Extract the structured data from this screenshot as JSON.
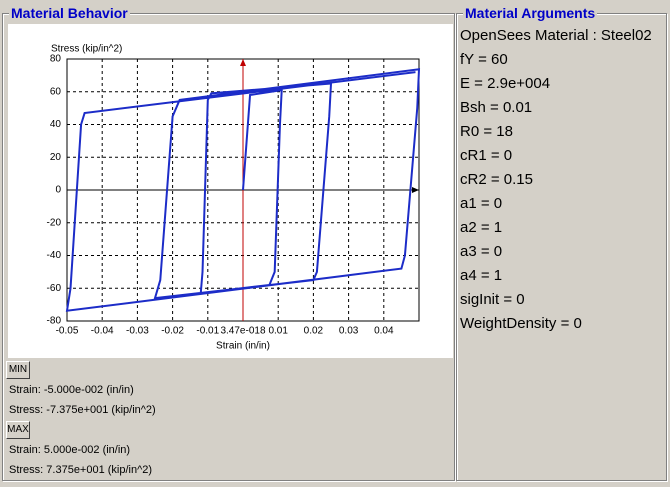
{
  "left_panel": {
    "title": "Material Behavior",
    "min_button": "MIN",
    "min_strain": "Strain: -5.000e-002 (in/in)",
    "min_stress": "Stress: -7.375e+001 (kip/in^2)",
    "max_button": "MAX",
    "max_strain": "Strain: 5.000e-002 (in/in)",
    "max_stress": "Stress: 7.375e+001 (kip/in^2)"
  },
  "chart_data": {
    "type": "line",
    "y_label": "Stress (kip/in^2)",
    "x_label": "Strain (in/in)",
    "x": [
      0,
      0.002,
      0.011,
      0.0105,
      0.009,
      0.0075,
      -0.012,
      -0.0115,
      -0.01,
      -0.009,
      0.025,
      0.0245,
      0.021,
      0.02,
      -0.025,
      -0.0235,
      -0.02,
      -0.018,
      0.05,
      0.0495,
      0.046,
      0.045,
      -0.05,
      -0.049,
      -0.046,
      -0.045,
      0.049
    ],
    "series": [
      {
        "color": "#1c2cc8",
        "values": [
          0,
          58,
          61,
          40,
          -50,
          -58,
          -63,
          -50,
          55,
          59,
          65,
          45,
          -50,
          -55,
          -66,
          -55,
          45,
          55,
          73.75,
          50,
          -40,
          -48,
          -73.75,
          -60,
          40,
          47,
          72
        ]
      }
    ],
    "xlim": [
      -0.05,
      0.05
    ],
    "ylim": [
      -80,
      80
    ],
    "xticks": [
      -0.05,
      -0.04,
      -0.03,
      -0.02,
      -0.01,
      {
        "value": 3.47e-18,
        "label": "3.47e-018"
      },
      0.01,
      0.02,
      0.03,
      0.04
    ],
    "yticks": [
      -80,
      -60,
      -40,
      -20,
      0,
      20,
      40,
      60,
      80
    ],
    "grid": true
  },
  "right_panel": {
    "title": "Material Arguments",
    "lines": [
      "OpenSees Material : Steel02",
      "fY = 60",
      "E = 2.9e+004",
      "Bsh = 0.01",
      "R0 = 18",
      "cR1 = 0",
      "cR2 = 0.15",
      "a1 = 0",
      "a2 = 1",
      "a3 = 0",
      "a4 = 1",
      "sigInit = 0",
      "WeightDensity = 0"
    ]
  }
}
